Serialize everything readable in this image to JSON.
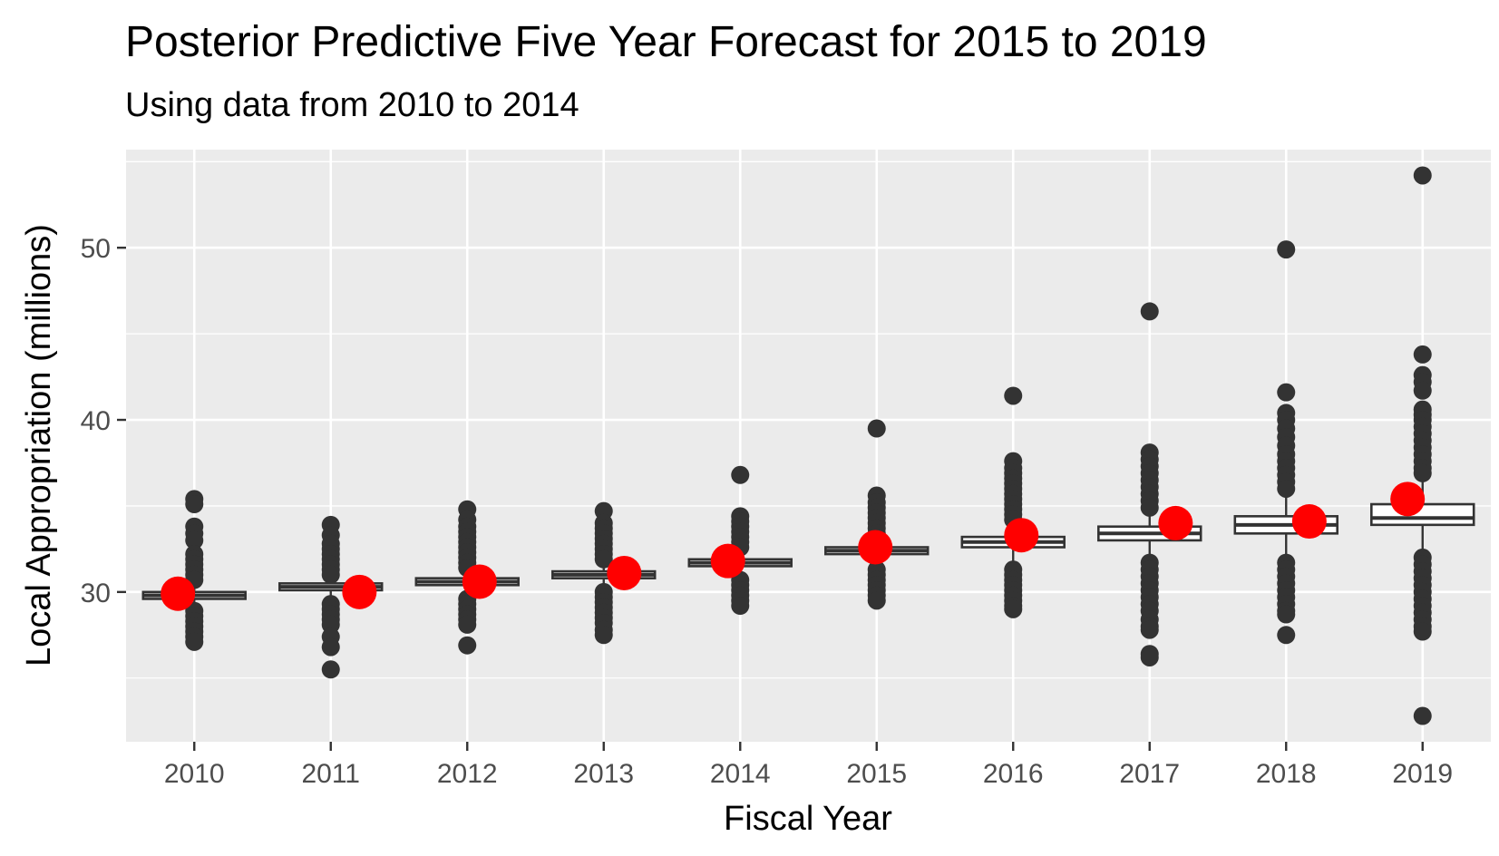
{
  "chart_data": {
    "type": "box",
    "title": "Posterior Predictive Five Year Forecast for 2015 to 2019",
    "subtitle": "Using data from 2010 to 2014",
    "xlabel": "Fiscal Year",
    "ylabel": "Local Appropriation (millions)",
    "ylim": [
      21.3,
      55.7
    ],
    "yticks": [
      30,
      40,
      50
    ],
    "y_minor_gridlines": [
      25,
      35,
      45,
      55
    ],
    "grid": true,
    "background_color": "#ebebeb",
    "box_color": "#333333",
    "observed_point_color": "#ff0000",
    "categories": [
      "2010",
      "2011",
      "2012",
      "2013",
      "2014",
      "2015",
      "2016",
      "2017",
      "2018",
      "2019"
    ],
    "boxes": [
      {
        "year": "2010",
        "q1": 29.6,
        "median": 29.8,
        "q3": 30.0,
        "whisker_low": 29.2,
        "whisker_high": 30.4,
        "outliers": [
          35.4,
          35.1,
          33.8,
          33.4,
          33.0,
          32.2,
          31.9,
          31.6,
          31.3,
          31.0,
          30.7,
          28.9,
          28.6,
          28.3,
          28.0,
          27.7,
          27.4,
          27.1
        ]
      },
      {
        "year": "2011",
        "q1": 30.1,
        "median": 30.3,
        "q3": 30.5,
        "whisker_low": 29.7,
        "whisker_high": 30.9,
        "outliers": [
          33.9,
          33.3,
          32.8,
          32.5,
          32.2,
          31.9,
          31.6,
          31.3,
          31.0,
          29.3,
          29.0,
          28.7,
          28.4,
          28.1,
          27.4,
          26.8,
          25.5
        ]
      },
      {
        "year": "2012",
        "q1": 30.4,
        "median": 30.6,
        "q3": 30.8,
        "whisker_low": 30.0,
        "whisker_high": 31.2,
        "outliers": [
          34.8,
          34.2,
          33.8,
          33.5,
          33.2,
          32.9,
          32.6,
          32.3,
          32.0,
          31.7,
          31.4,
          29.6,
          29.3,
          29.0,
          28.7,
          28.4,
          28.1,
          26.9
        ]
      },
      {
        "year": "2013",
        "q1": 30.8,
        "median": 31.0,
        "q3": 31.2,
        "whisker_low": 30.4,
        "whisker_high": 31.6,
        "outliers": [
          34.7,
          34.0,
          33.7,
          33.4,
          33.1,
          32.8,
          32.5,
          32.2,
          31.9,
          30.0,
          29.7,
          29.4,
          29.1,
          28.8,
          28.5,
          28.2,
          27.8,
          27.5
        ]
      },
      {
        "year": "2014",
        "q1": 31.5,
        "median": 31.7,
        "q3": 31.9,
        "whisker_low": 31.1,
        "whisker_high": 32.3,
        "outliers": [
          36.8,
          34.4,
          34.1,
          33.8,
          33.5,
          33.2,
          32.9,
          32.6,
          30.7,
          30.4,
          30.1,
          29.8,
          29.5,
          29.2
        ]
      },
      {
        "year": "2015",
        "q1": 32.2,
        "median": 32.4,
        "q3": 32.6,
        "whisker_low": 31.7,
        "whisker_high": 33.0,
        "outliers": [
          39.5,
          35.6,
          35.2,
          34.9,
          34.6,
          34.3,
          34.0,
          33.7,
          33.4,
          31.3,
          31.0,
          30.7,
          30.4,
          30.1,
          29.8,
          29.5
        ]
      },
      {
        "year": "2016",
        "q1": 32.6,
        "median": 32.9,
        "q3": 33.2,
        "whisker_low": 31.7,
        "whisker_high": 33.7,
        "outliers": [
          41.4,
          37.6,
          37.2,
          36.9,
          36.6,
          36.3,
          36.0,
          35.7,
          35.4,
          35.1,
          34.8,
          34.5,
          34.2,
          31.3,
          31.0,
          30.7,
          30.4,
          30.1,
          29.8,
          29.5,
          29.2,
          29.0
        ]
      },
      {
        "year": "2017",
        "q1": 33.0,
        "median": 33.4,
        "q3": 33.8,
        "whisker_low": 32.0,
        "whisker_high": 34.6,
        "outliers": [
          46.3,
          38.1,
          37.7,
          37.3,
          36.9,
          36.5,
          36.1,
          35.7,
          35.3,
          34.9,
          31.7,
          31.3,
          30.9,
          30.5,
          30.1,
          29.7,
          29.3,
          28.9,
          28.4,
          28.0,
          27.8,
          26.4,
          26.2
        ]
      },
      {
        "year": "2018",
        "q1": 33.4,
        "median": 33.9,
        "q3": 34.4,
        "whisker_low": 32.1,
        "whisker_high": 35.5,
        "outliers": [
          49.9,
          41.6,
          40.4,
          40.0,
          39.5,
          39.0,
          38.5,
          38.0,
          37.6,
          37.2,
          36.8,
          36.4,
          36.0,
          31.7,
          31.3,
          30.9,
          30.5,
          30.1,
          29.7,
          29.3,
          28.9,
          28.7,
          27.5
        ]
      },
      {
        "year": "2019",
        "q1": 33.9,
        "median": 34.3,
        "q3": 35.1,
        "whisker_low": 32.3,
        "whisker_high": 36.6,
        "outliers": [
          54.2,
          43.8,
          42.6,
          42.2,
          41.7,
          40.6,
          40.3,
          40.0,
          39.6,
          39.2,
          38.8,
          38.4,
          38.0,
          37.6,
          37.2,
          36.9,
          32.0,
          31.6,
          31.2,
          30.8,
          30.4,
          30.0,
          29.6,
          29.2,
          28.8,
          28.4,
          28.0,
          27.7,
          22.8
        ]
      }
    ],
    "observed": [
      {
        "year": "2010",
        "value": 29.9,
        "offset": -0.12
      },
      {
        "year": "2011",
        "value": 30.0,
        "offset": 0.21
      },
      {
        "year": "2012",
        "value": 30.6,
        "offset": 0.09
      },
      {
        "year": "2013",
        "value": 31.1,
        "offset": 0.15
      },
      {
        "year": "2014",
        "value": 31.8,
        "offset": -0.09
      },
      {
        "year": "2015",
        "value": 32.6,
        "offset": -0.01
      },
      {
        "year": "2016",
        "value": 33.3,
        "offset": 0.06
      },
      {
        "year": "2017",
        "value": 34.0,
        "offset": 0.19
      },
      {
        "year": "2018",
        "value": 34.1,
        "offset": 0.17
      },
      {
        "year": "2019",
        "value": 35.4,
        "offset": -0.11
      }
    ]
  }
}
